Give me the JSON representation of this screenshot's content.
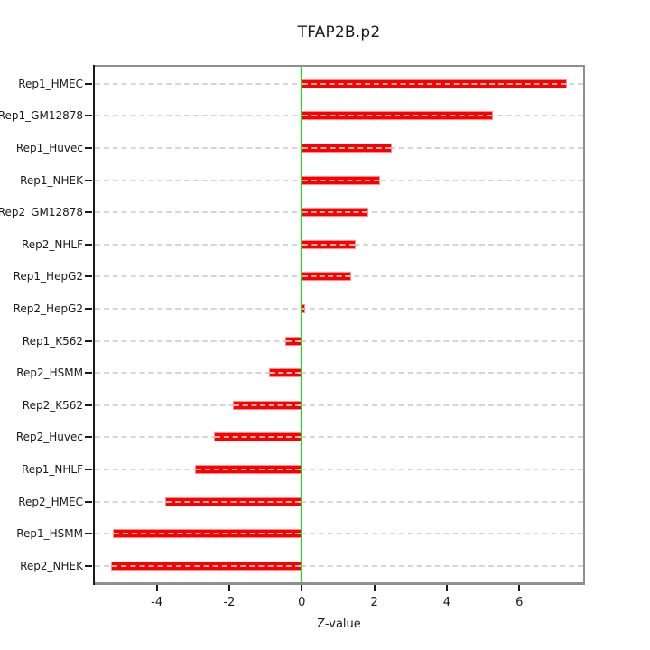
{
  "page": {
    "background": "#ffffff"
  },
  "chart_data": {
    "type": "bar",
    "orientation": "horizontal",
    "title": "TFAP2B.p2",
    "xlabel": "Z-value",
    "ylabel": "",
    "categories": [
      "Rep1_HMEC",
      "Rep1_GM12878",
      "Rep1_Huvec",
      "Rep1_NHEK",
      "Rep2_GM12878",
      "Rep2_NHLF",
      "Rep1_HepG2",
      "Rep2_HepG2",
      "Rep1_K562",
      "Rep2_HSMM",
      "Rep2_K562",
      "Rep2_Huvec",
      "Rep1_NHLF",
      "Rep2_HMEC",
      "Rep1_HSMM",
      "Rep2_NHEK"
    ],
    "values": [
      7.31,
      5.27,
      2.49,
      2.15,
      1.84,
      1.49,
      1.35,
      0.08,
      -0.46,
      -0.91,
      -1.89,
      -2.42,
      -2.95,
      -3.76,
      -5.21,
      -5.25
    ],
    "x_ticks": [
      -4,
      -2,
      0,
      2,
      4,
      6
    ],
    "xlim": [
      -5.76,
      7.81
    ],
    "grid": "dashed horizontal line per category, full plot width",
    "legend": "none",
    "bar_color": "#fb0000",
    "bar_dash_color": "#ffb4b4",
    "zero_line_color": "#00f000",
    "gridline_color": "#d6d6d6",
    "box_color": "#8f8f8f",
    "axis_color": "#1a1a1a"
  }
}
